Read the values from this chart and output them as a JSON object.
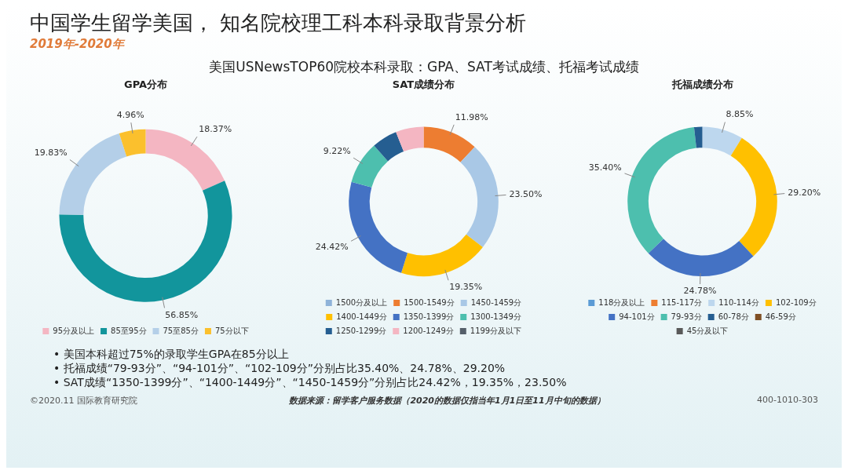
{
  "chart_data": [
    {
      "type": "other",
      "title": "中国学生留学美国， 知名院校理工科本科录取背景分析",
      "subtitle": "2019年-2020年",
      "annotations": [
        "美国USNewsTOP60院校本科录取：GPA、SAT考试成绩、托福考试成绩"
      ]
    },
    {
      "type": "donut",
      "title": "GPA分布",
      "categories": [
        "95分及以上",
        "85至95分",
        "75至85分",
        "75分以下"
      ],
      "values": [
        18.37,
        56.85,
        19.83,
        4.96
      ],
      "colors": [
        "#f4b6c2",
        "#12959c",
        "#b4cfe8",
        "#fbc02d"
      ],
      "value_labels": [
        "18.37%",
        "56.85%",
        "19.83%",
        "4.96%"
      ],
      "legend": "bottom"
    },
    {
      "type": "donut",
      "title": "SAT成绩分布",
      "categories": [
        "1500分及以上",
        "1500-1549分",
        "1450-1459分",
        "1400-1449分",
        "1350-1399分",
        "1300-1349分",
        "1250-1299分",
        "1200-1249分",
        "1199分及以下"
      ],
      "values": [
        0,
        11.98,
        23.5,
        19.35,
        24.42,
        9.22,
        5.5,
        6.03,
        0
      ],
      "colors": [
        "#8fb3d9",
        "#ed7d31",
        "#a9c8e6",
        "#ffc000",
        "#4472c4",
        "#4dbfae",
        "#255e91",
        "#f4b6c2",
        "#555f6a"
      ],
      "value_labels": [
        null,
        "11.98%",
        "23.50%",
        "19.35%",
        "24.42%",
        "9.22%",
        null,
        null,
        null
      ],
      "legend": "bottom"
    },
    {
      "type": "donut",
      "title": "托福成绩分布",
      "categories": [
        "118分及以上",
        "115-117分",
        "110-114分",
        "102-109分",
        "94-101分",
        "79-93分",
        "60-78分",
        "46-59分",
        "45分及以下"
      ],
      "values": [
        0,
        0,
        8.85,
        29.2,
        24.78,
        35.4,
        1.77,
        0,
        0
      ],
      "colors": [
        "#5b9bd5",
        "#ed7d31",
        "#bdd7ee",
        "#ffc000",
        "#4472c4",
        "#4dbfae",
        "#255e91",
        "#7f4f24",
        "#595959"
      ],
      "value_labels": [
        null,
        null,
        "8.85%",
        "29.20%",
        "24.78%",
        "35.40%",
        null,
        null,
        null
      ],
      "legend": "bottom"
    },
    {
      "type": "other",
      "annotations": [
        "• 美国本科超过75%的录取学生GPA在85分以上",
        "• 托福成绩“79-93分”、“94-101分”、“102-109分”分别占比35.40%、24.78%、29.20%",
        "• SAT成绩“1350-1399分”、“1400-1449分”、“1450-1459分”分别占比24.42%，19.35%，23.50%",
        "©2020.11 国际教育研究院",
        "数据来源：留学客户服务数据（2020的数据仅指当年1月1日至11月中旬的数据）",
        "400-1010-303"
      ]
    }
  ]
}
